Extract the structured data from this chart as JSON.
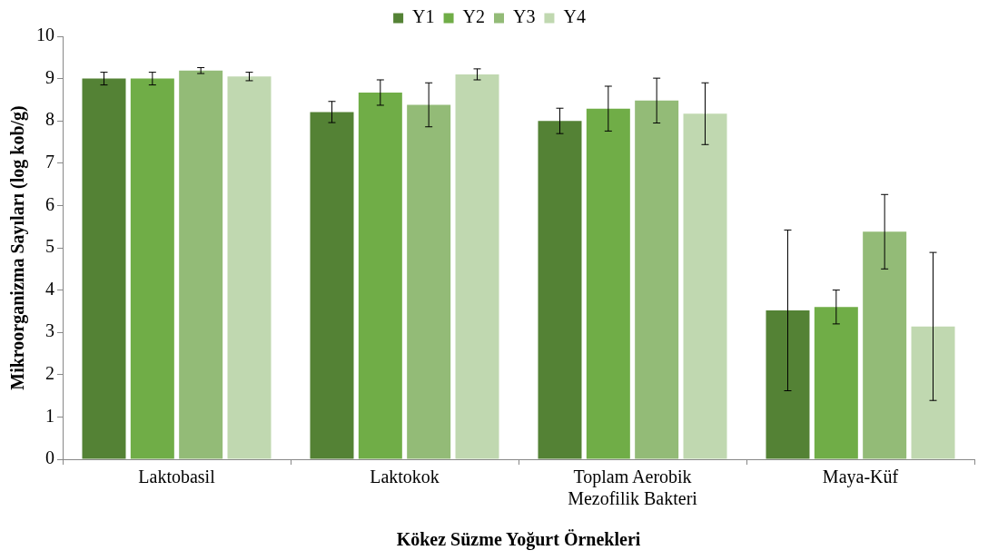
{
  "chart_data": {
    "type": "bar",
    "xlabel": "Kökez Süzme Yoğurt Örnekleri",
    "ylabel": "Mikroorganizma Sayıları (log kob/g)",
    "categories": [
      "Laktobasil",
      "Laktokok",
      "Toplam Aerobik Mezofilik Bakteri",
      "Maya-Küf"
    ],
    "series": [
      {
        "name": "Y1",
        "color": "#548235",
        "values": [
          9.0,
          8.21,
          8.0,
          3.52
        ],
        "errors": [
          0.15,
          0.25,
          0.3,
          1.9
        ]
      },
      {
        "name": "Y2",
        "color": "#70ad47",
        "values": [
          9.0,
          8.67,
          8.29,
          3.6
        ],
        "errors": [
          0.15,
          0.3,
          0.53,
          0.4
        ]
      },
      {
        "name": "Y3",
        "color": "#93bb77",
        "values": [
          9.19,
          8.38,
          8.48,
          5.38
        ],
        "errors": [
          0.07,
          0.52,
          0.53,
          0.88
        ]
      },
      {
        "name": "Y4",
        "color": "#c0d8b0",
        "values": [
          9.05,
          9.1,
          8.17,
          3.14
        ],
        "errors": [
          0.1,
          0.13,
          0.73,
          1.75
        ]
      }
    ],
    "ylim": [
      0,
      10
    ],
    "yticks": [
      0,
      1,
      2,
      3,
      4,
      5,
      6,
      7,
      8,
      9,
      10
    ],
    "grid": false,
    "legend": "top"
  }
}
